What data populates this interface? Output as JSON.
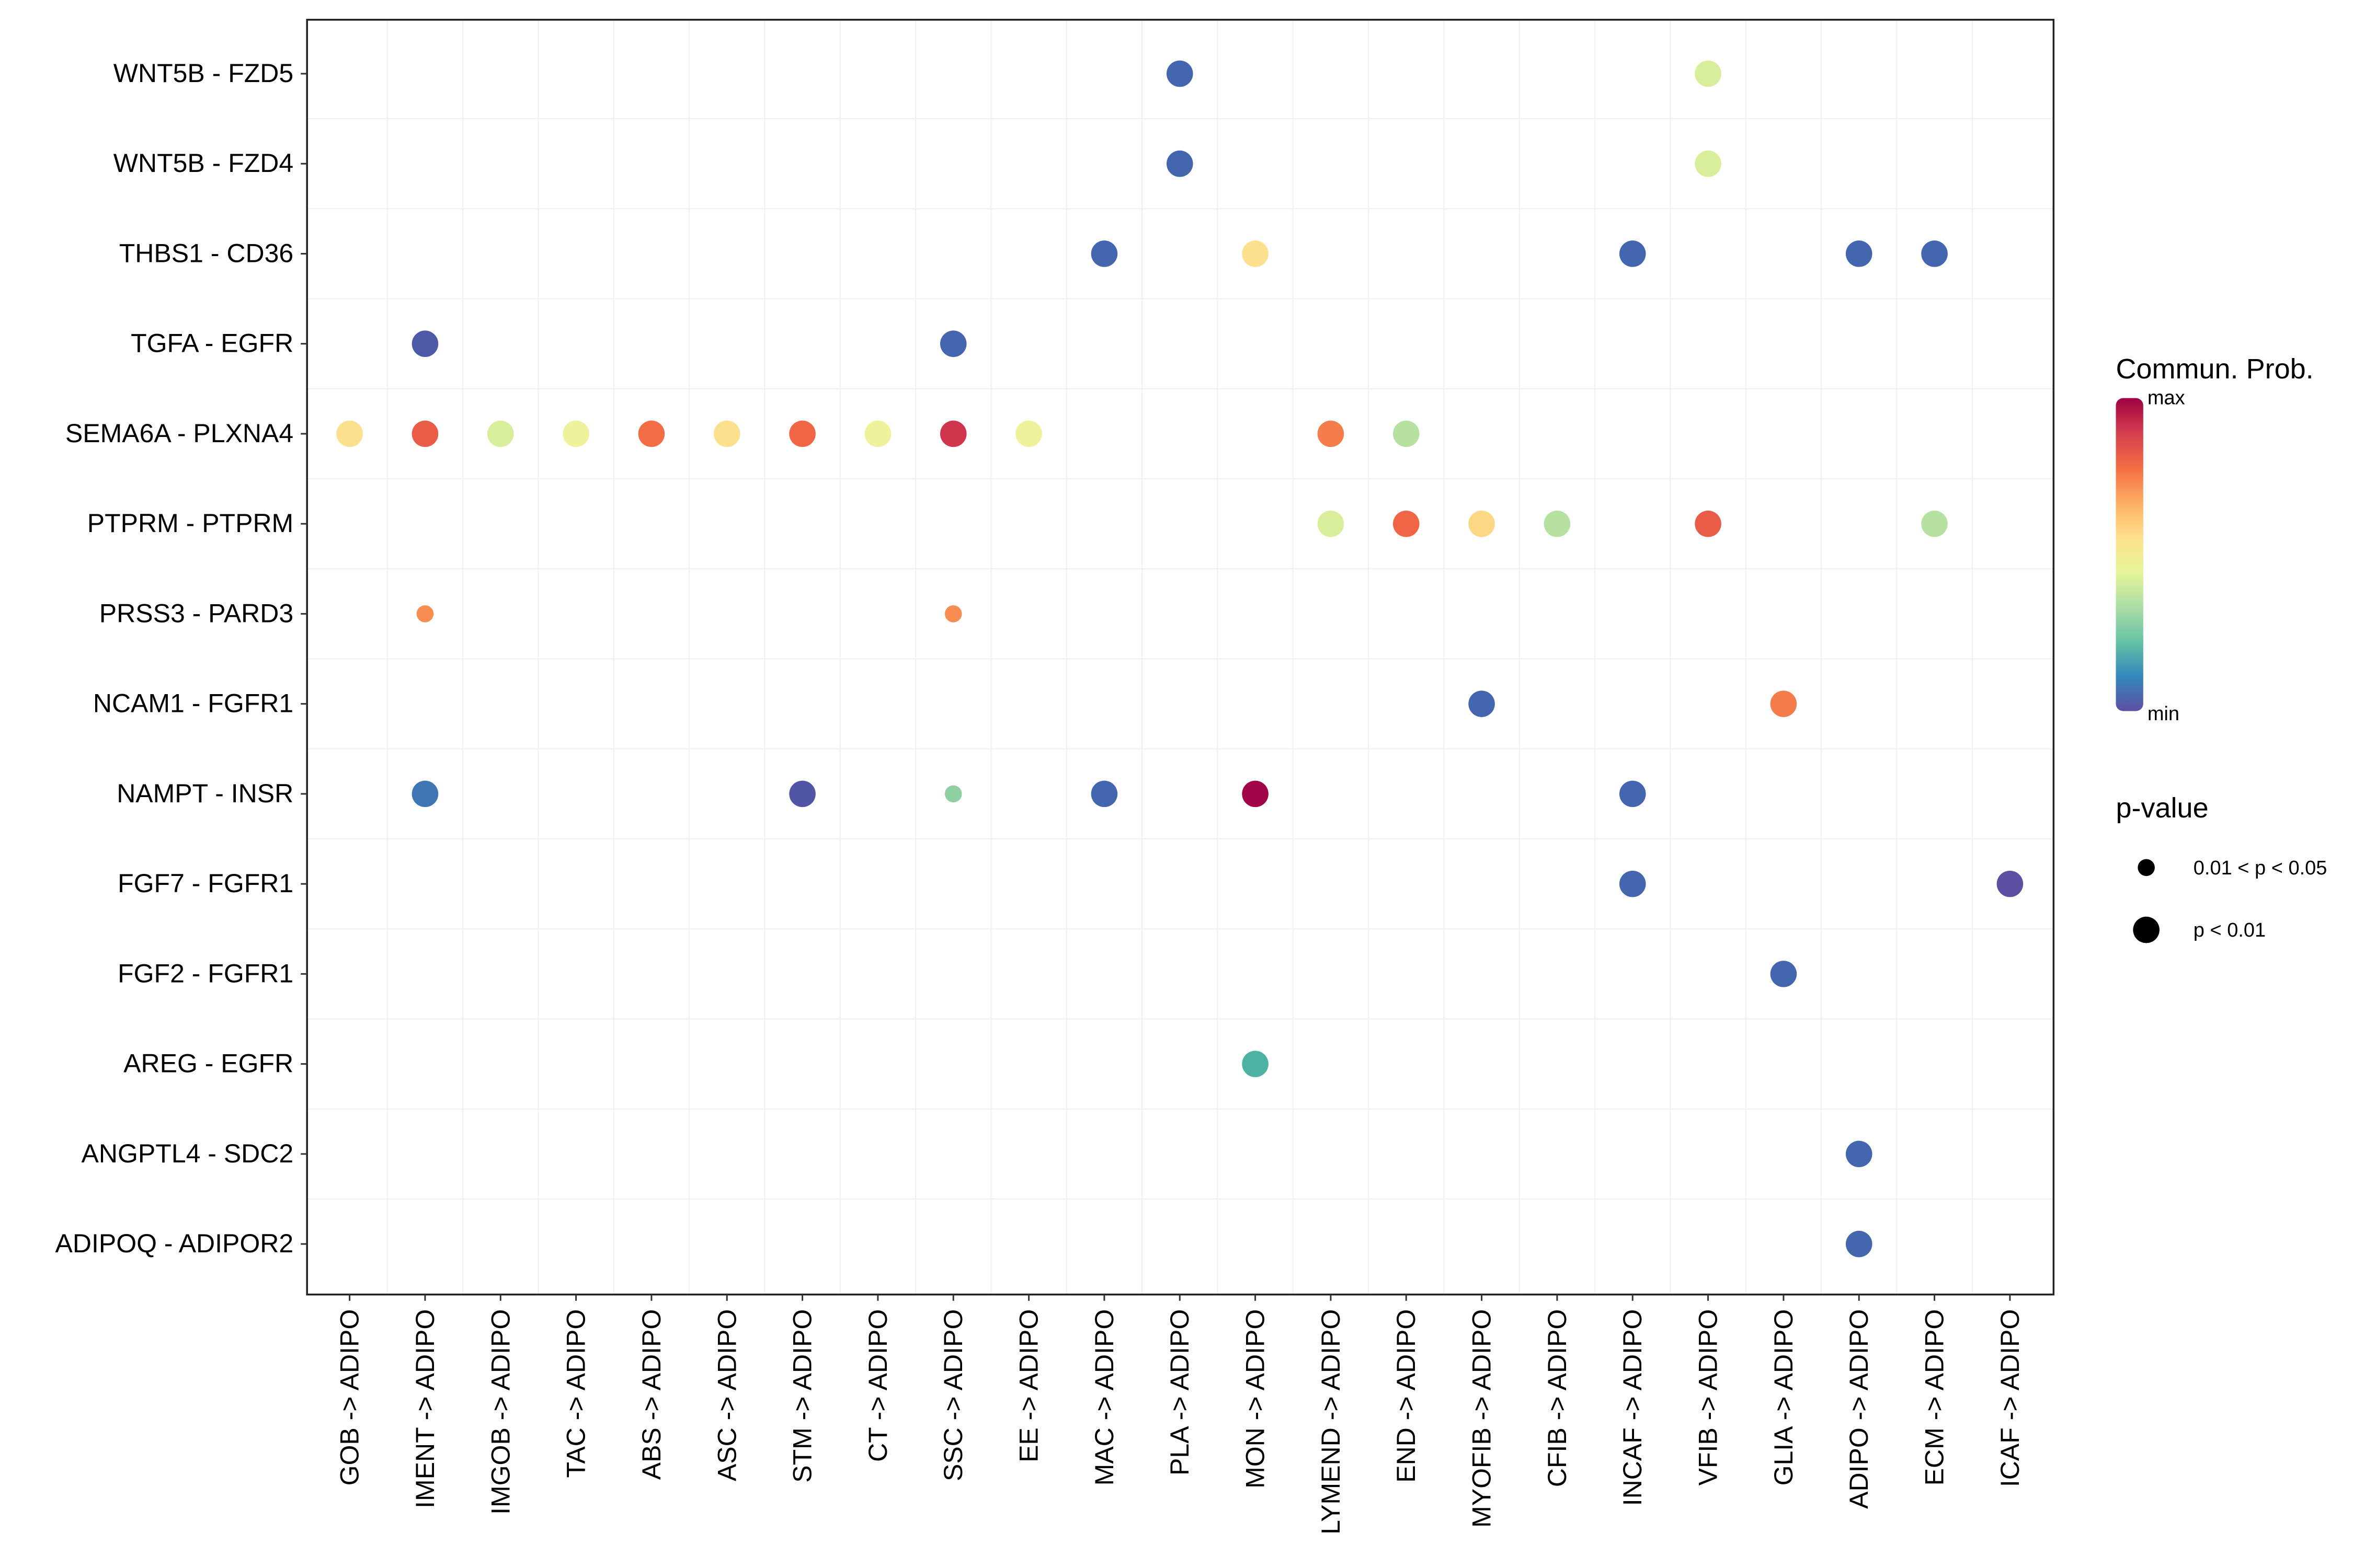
{
  "chart_data": {
    "type": "scatter",
    "title": "",
    "xlabel": "",
    "ylabel": "",
    "grid": true,
    "legend_position": "right",
    "x_categories": [
      "GOB -> ADIPO",
      "IMENT -> ADIPO",
      "IMGOB -> ADIPO",
      "TAC -> ADIPO",
      "ABS -> ADIPO",
      "ASC -> ADIPO",
      "STM -> ADIPO",
      "CT -> ADIPO",
      "SSC -> ADIPO",
      "EE -> ADIPO",
      "MAC -> ADIPO",
      "PLA -> ADIPO",
      "MON -> ADIPO",
      "LYMEND -> ADIPO",
      "END -> ADIPO",
      "MYOFIB -> ADIPO",
      "CFIB -> ADIPO",
      "INCAF -> ADIPO",
      "VFIB -> ADIPO",
      "GLIA -> ADIPO",
      "ADIPO -> ADIPO",
      "ECM -> ADIPO",
      "ICAF -> ADIPO"
    ],
    "y_categories": [
      "WNT5B - FZD5",
      "WNT5B - FZD4",
      "THBS1 - CD36",
      "TGFA - EGFR",
      "SEMA6A - PLXNA4",
      "PTPRM - PTPRM",
      "PRSS3 - PARD3",
      "NCAM1 - FGFR1",
      "NAMPT - INSR",
      "FGF7 - FGFR1",
      "FGF2 - FGFR1",
      "AREG - EGFR",
      "ANGPTL4 - SDC2",
      "ADIPOQ - ADIPOR2"
    ],
    "color_scale": {
      "stops": [
        "#5E4FA2",
        "#3288BD",
        "#66C2A5",
        "#ABDDA4",
        "#E6F598",
        "#FEE08B",
        "#FDAE61",
        "#F46D43",
        "#D53E4F",
        "#9E0142"
      ],
      "min_label": "min",
      "max_label": "max",
      "title": "Commun. Prob."
    },
    "size_legend": {
      "title": "p-value",
      "items": [
        {
          "label": "0.01 < p < 0.05",
          "size": "small"
        },
        {
          "label": "p < 0.01",
          "size": "large"
        }
      ]
    },
    "points": [
      {
        "x": "PLA -> ADIPO",
        "y": "WNT5B - FZD5",
        "prob": 0.12,
        "color": "#4466AE",
        "pvalue": "p < 0.01"
      },
      {
        "x": "VFIB -> ADIPO",
        "y": "WNT5B - FZD5",
        "prob": 0.45,
        "color": "#D9EE9A",
        "pvalue": "p < 0.01"
      },
      {
        "x": "PLA -> ADIPO",
        "y": "WNT5B - FZD4",
        "prob": 0.12,
        "color": "#4466AE",
        "pvalue": "p < 0.01"
      },
      {
        "x": "VFIB -> ADIPO",
        "y": "WNT5B - FZD4",
        "prob": 0.45,
        "color": "#D9EE9A",
        "pvalue": "p < 0.01"
      },
      {
        "x": "MAC -> ADIPO",
        "y": "THBS1 - CD36",
        "prob": 0.12,
        "color": "#4466AE",
        "pvalue": "p < 0.01"
      },
      {
        "x": "MON -> ADIPO",
        "y": "THBS1 - CD36",
        "prob": 0.55,
        "color": "#FCE08E",
        "pvalue": "p < 0.01"
      },
      {
        "x": "INCAF -> ADIPO",
        "y": "THBS1 - CD36",
        "prob": 0.12,
        "color": "#4466AE",
        "pvalue": "p < 0.01"
      },
      {
        "x": "ADIPO -> ADIPO",
        "y": "THBS1 - CD36",
        "prob": 0.12,
        "color": "#4466AE",
        "pvalue": "p < 0.01"
      },
      {
        "x": "ECM -> ADIPO",
        "y": "THBS1 - CD36",
        "prob": 0.12,
        "color": "#4466AE",
        "pvalue": "p < 0.01"
      },
      {
        "x": "IMENT -> ADIPO",
        "y": "TGFA - EGFR",
        "prob": 0.08,
        "color": "#4E5AA8",
        "pvalue": "p < 0.01"
      },
      {
        "x": "SSC -> ADIPO",
        "y": "TGFA - EGFR",
        "prob": 0.12,
        "color": "#4466AE",
        "pvalue": "p < 0.01"
      },
      {
        "x": "GOB -> ADIPO",
        "y": "SEMA6A - PLXNA4",
        "prob": 0.55,
        "color": "#FCE08E",
        "pvalue": "p < 0.01"
      },
      {
        "x": "IMENT -> ADIPO",
        "y": "SEMA6A - PLXNA4",
        "prob": 0.82,
        "color": "#E95C47",
        "pvalue": "p < 0.01"
      },
      {
        "x": "IMGOB -> ADIPO",
        "y": "SEMA6A - PLXNA4",
        "prob": 0.45,
        "color": "#D9EE9A",
        "pvalue": "p < 0.01"
      },
      {
        "x": "TAC -> ADIPO",
        "y": "SEMA6A - PLXNA4",
        "prob": 0.5,
        "color": "#EEF39B",
        "pvalue": "p < 0.01"
      },
      {
        "x": "ABS -> ADIPO",
        "y": "SEMA6A - PLXNA4",
        "prob": 0.78,
        "color": "#F26D44",
        "pvalue": "p < 0.01"
      },
      {
        "x": "ASC -> ADIPO",
        "y": "SEMA6A - PLXNA4",
        "prob": 0.55,
        "color": "#FCE08E",
        "pvalue": "p < 0.01"
      },
      {
        "x": "STM -> ADIPO",
        "y": "SEMA6A - PLXNA4",
        "prob": 0.8,
        "color": "#F06546",
        "pvalue": "p < 0.01"
      },
      {
        "x": "CT -> ADIPO",
        "y": "SEMA6A - PLXNA4",
        "prob": 0.5,
        "color": "#EEF39B",
        "pvalue": "p < 0.01"
      },
      {
        "x": "SSC -> ADIPO",
        "y": "SEMA6A - PLXNA4",
        "prob": 0.9,
        "color": "#D1354E",
        "pvalue": "p < 0.01"
      },
      {
        "x": "EE -> ADIPO",
        "y": "SEMA6A - PLXNA4",
        "prob": 0.5,
        "color": "#EEF39B",
        "pvalue": "p < 0.01"
      },
      {
        "x": "LYMEND -> ADIPO",
        "y": "SEMA6A - PLXNA4",
        "prob": 0.74,
        "color": "#F47D4B",
        "pvalue": "p < 0.01"
      },
      {
        "x": "END -> ADIPO",
        "y": "SEMA6A - PLXNA4",
        "prob": 0.38,
        "color": "#B7E1A1",
        "pvalue": "p < 0.01"
      },
      {
        "x": "LYMEND -> ADIPO",
        "y": "PTPRM - PTPRM",
        "prob": 0.45,
        "color": "#D9EE9A",
        "pvalue": "p < 0.01"
      },
      {
        "x": "END -> ADIPO",
        "y": "PTPRM - PTPRM",
        "prob": 0.8,
        "color": "#F06546",
        "pvalue": "p < 0.01"
      },
      {
        "x": "MYOFIB -> ADIPO",
        "y": "PTPRM - PTPRM",
        "prob": 0.58,
        "color": "#FDD884",
        "pvalue": "p < 0.01"
      },
      {
        "x": "CFIB -> ADIPO",
        "y": "PTPRM - PTPRM",
        "prob": 0.38,
        "color": "#B7E1A1",
        "pvalue": "p < 0.01"
      },
      {
        "x": "VFIB -> ADIPO",
        "y": "PTPRM - PTPRM",
        "prob": 0.82,
        "color": "#E95C47",
        "pvalue": "p < 0.01"
      },
      {
        "x": "ECM -> ADIPO",
        "y": "PTPRM - PTPRM",
        "prob": 0.38,
        "color": "#B7E1A1",
        "pvalue": "p < 0.01"
      },
      {
        "x": "IMENT -> ADIPO",
        "y": "PRSS3 - PARD3",
        "prob": 0.7,
        "color": "#F88D52",
        "pvalue": "0.01 < p < 0.05"
      },
      {
        "x": "SSC -> ADIPO",
        "y": "PRSS3 - PARD3",
        "prob": 0.7,
        "color": "#F88D52",
        "pvalue": "0.01 < p < 0.05"
      },
      {
        "x": "MYOFIB -> ADIPO",
        "y": "NCAM1 - FGFR1",
        "prob": 0.12,
        "color": "#4466AE",
        "pvalue": "p < 0.01"
      },
      {
        "x": "GLIA -> ADIPO",
        "y": "NCAM1 - FGFR1",
        "prob": 0.75,
        "color": "#F47D4B",
        "pvalue": "p < 0.01"
      },
      {
        "x": "IMENT -> ADIPO",
        "y": "NAMPT - INSR",
        "prob": 0.15,
        "color": "#3F75B3",
        "pvalue": "p < 0.01"
      },
      {
        "x": "STM -> ADIPO",
        "y": "NAMPT - INSR",
        "prob": 0.06,
        "color": "#5155A6",
        "pvalue": "p < 0.01"
      },
      {
        "x": "SSC -> ADIPO",
        "y": "NAMPT - INSR",
        "prob": 0.33,
        "color": "#8ED0A2",
        "pvalue": "0.01 < p < 0.05"
      },
      {
        "x": "MAC -> ADIPO",
        "y": "NAMPT - INSR",
        "prob": 0.12,
        "color": "#4466AE",
        "pvalue": "p < 0.01"
      },
      {
        "x": "MON -> ADIPO",
        "y": "NAMPT - INSR",
        "prob": 1.0,
        "color": "#A00547",
        "pvalue": "p < 0.01"
      },
      {
        "x": "INCAF -> ADIPO",
        "y": "NAMPT - INSR",
        "prob": 0.12,
        "color": "#4466AE",
        "pvalue": "p < 0.01"
      },
      {
        "x": "INCAF -> ADIPO",
        "y": "FGF7 - FGFR1",
        "prob": 0.12,
        "color": "#4466AE",
        "pvalue": "p < 0.01"
      },
      {
        "x": "ICAF -> ADIPO",
        "y": "FGF7 - FGFR1",
        "prob": 0.02,
        "color": "#5E4FA2",
        "pvalue": "p < 0.01"
      },
      {
        "x": "GLIA -> ADIPO",
        "y": "FGF2 - FGFR1",
        "prob": 0.12,
        "color": "#4466AE",
        "pvalue": "p < 0.01"
      },
      {
        "x": "MON -> ADIPO",
        "y": "AREG - EGFR",
        "prob": 0.25,
        "color": "#4DB1A3",
        "pvalue": "p < 0.01"
      },
      {
        "x": "ADIPO -> ADIPO",
        "y": "ANGPTL4 - SDC2",
        "prob": 0.12,
        "color": "#4466AE",
        "pvalue": "p < 0.01"
      },
      {
        "x": "ADIPO -> ADIPO",
        "y": "ADIPOQ - ADIPOR2",
        "prob": 0.12,
        "color": "#4466AE",
        "pvalue": "p < 0.01"
      }
    ]
  }
}
